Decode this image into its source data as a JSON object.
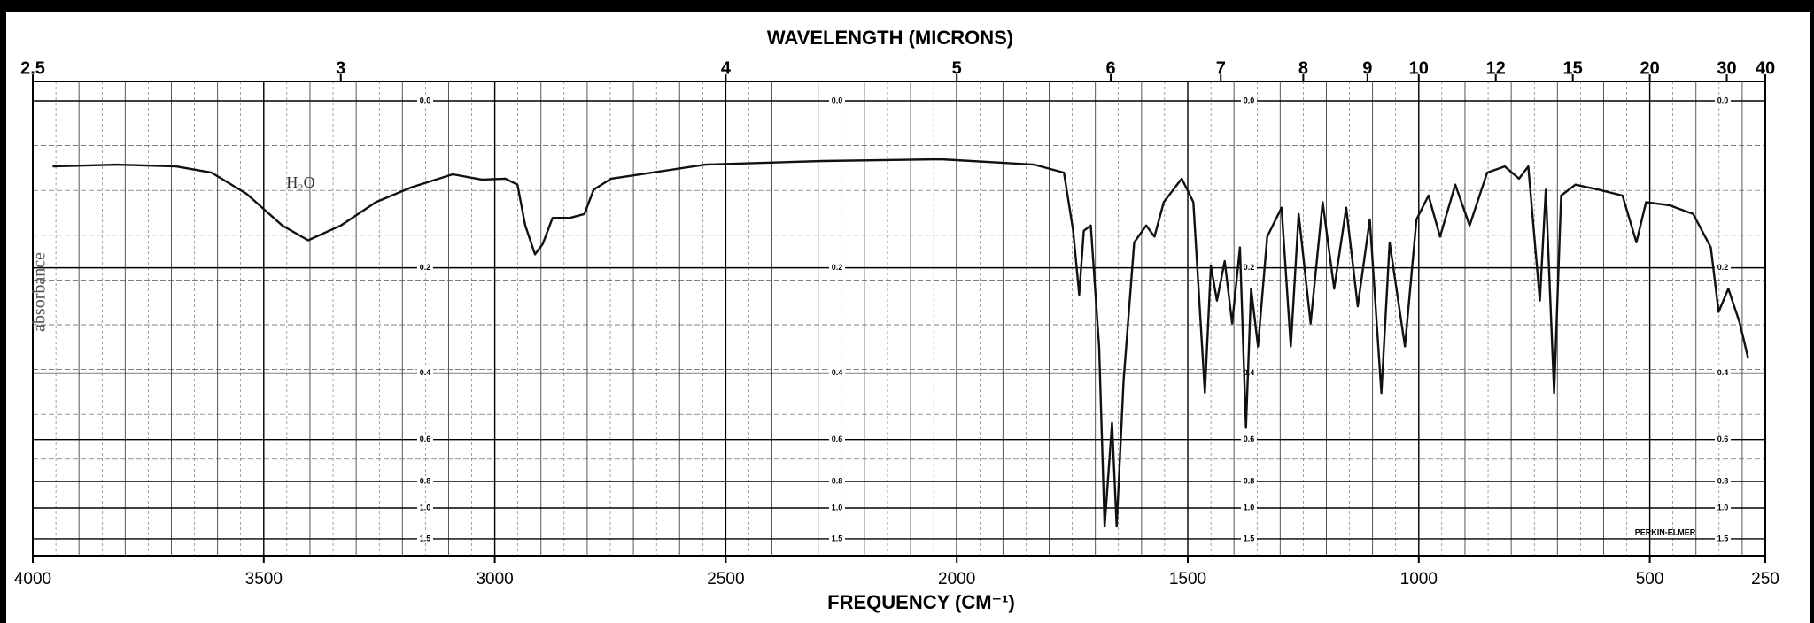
{
  "chart_data": {
    "type": "line",
    "title": "WAVELENGTH (MICRONS)",
    "x_label": "FREQUENCY (CM⁻¹)",
    "y_label": "absorbance",
    "annotations": [
      {
        "text": "H₂O",
        "x": 3420,
        "y": 0.03
      }
    ],
    "brand": "PERKIN-ELMER",
    "y_scale": "transmittance",
    "grid": true,
    "xlim": [
      4000,
      250
    ],
    "xticks": [
      4000,
      3500,
      3000,
      2500,
      2000,
      1500,
      1000,
      500,
      250
    ],
    "x2ticks": [
      2.5,
      3,
      4,
      5,
      6,
      7,
      8,
      9,
      10,
      12,
      15,
      20,
      30,
      40
    ],
    "ylim": [
      0,
      2
    ],
    "yticks": [
      {
        "value": 0,
        "label": "0.0"
      },
      0.2,
      0.4,
      0.6,
      0.8,
      {
        "value": 1,
        "label": "1.0"
      },
      1.5
    ],
    "series": [
      {
        "name": "spectrum",
        "color": "#111111",
        "x": [
          3957,
          3817,
          3690,
          3613,
          3537,
          3460,
          3404,
          3333,
          3257,
          3180,
          3091,
          3028,
          2977,
          2951,
          2934,
          2913,
          2896,
          2875,
          2837,
          2806,
          2786,
          2748,
          2544,
          2290,
          2035,
          1832,
          1768,
          1748,
          1735,
          1725,
          1710,
          1692,
          1680,
          1664,
          1654,
          1639,
          1616,
          1590,
          1572,
          1552,
          1513,
          1488,
          1463,
          1450,
          1437,
          1420,
          1404,
          1387,
          1374,
          1363,
          1348,
          1328,
          1297,
          1277,
          1260,
          1234,
          1208,
          1183,
          1157,
          1132,
          1106,
          1081,
          1063,
          1030,
          1005,
          979,
          954,
          921,
          890,
          852,
          814,
          783,
          763,
          738,
          725,
          707,
          692,
          661,
          610,
          559,
          529,
          508,
          457,
          406,
          368,
          351,
          330,
          305,
          287
        ],
        "values": [
          0.068,
          0.066,
          0.068,
          0.075,
          0.1,
          0.14,
          0.16,
          0.14,
          0.11,
          0.092,
          0.077,
          0.083,
          0.082,
          0.089,
          0.14,
          0.18,
          0.165,
          0.13,
          0.13,
          0.125,
          0.095,
          0.082,
          0.066,
          0.062,
          0.06,
          0.066,
          0.075,
          0.147,
          0.243,
          0.147,
          0.14,
          0.34,
          1.23,
          0.54,
          1.23,
          0.42,
          0.163,
          0.14,
          0.155,
          0.11,
          0.082,
          0.11,
          0.45,
          0.197,
          0.253,
          0.19,
          0.294,
          0.17,
          0.557,
          0.233,
          0.34,
          0.155,
          0.117,
          0.34,
          0.125,
          0.294,
          0.11,
          0.233,
          0.117,
          0.263,
          0.132,
          0.451,
          0.163,
          0.34,
          0.132,
          0.102,
          0.155,
          0.089,
          0.14,
          0.075,
          0.068,
          0.082,
          0.068,
          0.253,
          0.095,
          0.451,
          0.102,
          0.089,
          0.095,
          0.102,
          0.163,
          0.11,
          0.114,
          0.125,
          0.17,
          0.273,
          0.233,
          0.294,
          0.366
        ]
      }
    ]
  }
}
